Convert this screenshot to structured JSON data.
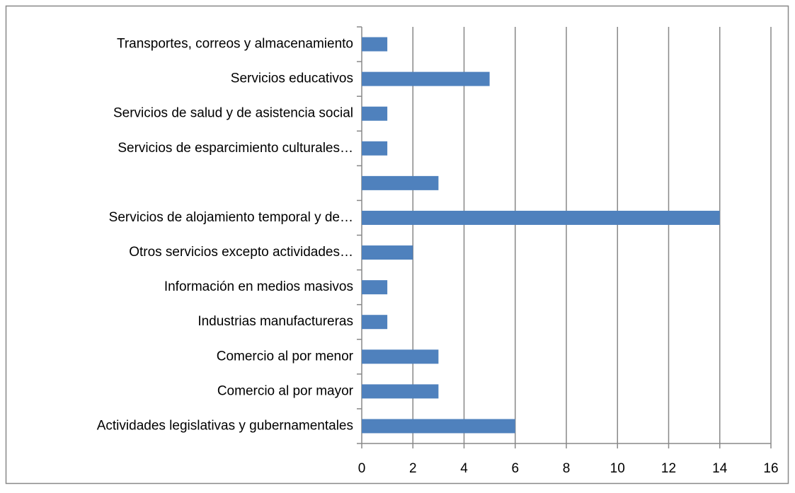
{
  "chart_data": {
    "type": "bar",
    "orientation": "horizontal",
    "categories": [
      "Actividades legislativas y gubernamentales",
      "Comercio al por mayor",
      "Comercio al por menor",
      "Industrias manufactureras",
      "Información en medios masivos",
      "Otros servicios excepto actividades…",
      "Servicios de alojamiento temporal y de…",
      null,
      "Servicios de esparcimiento culturales…",
      "Servicios de salud y de asistencia social",
      "Servicios educativos",
      "Transportes, correos y almacenamiento"
    ],
    "values": [
      6,
      3,
      3,
      1,
      1,
      2,
      14,
      3,
      1,
      1,
      5,
      1
    ],
    "color": "#4f81bd",
    "xlim": [
      0,
      16
    ],
    "xticks": [
      0,
      2,
      4,
      6,
      8,
      10,
      12,
      14,
      16
    ],
    "grid": true
  }
}
